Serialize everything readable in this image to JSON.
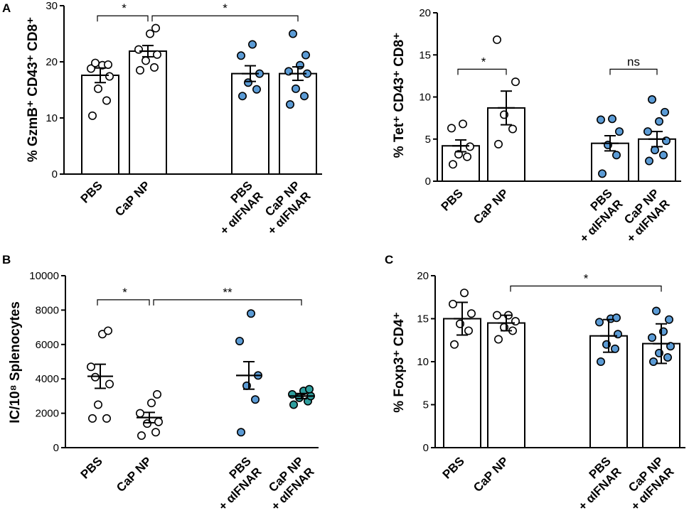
{
  "chart_data": [
    {
      "id": "A1",
      "panel_letter": "A",
      "type": "bar",
      "ylabel": "% GzmB⁺ CD43⁺ CD8⁺",
      "ylim": [
        0,
        30
      ],
      "yticks": [
        0,
        10,
        20,
        30
      ],
      "categories": [
        [
          "PBS"
        ],
        [
          "CaP NP"
        ],
        [
          "PBS",
          "+ αIFNAR"
        ],
        [
          "CaP NP",
          "+ αIFNAR"
        ]
      ],
      "series": [
        {
          "name": "PBS",
          "mean": 17.6,
          "sem": 1.3,
          "fill": "#ffffff",
          "points": [
            10.4,
            13.1,
            15.2,
            17.4,
            18.8,
            19.4,
            19.5,
            19.8
          ]
        },
        {
          "name": "CaP NP",
          "mean": 21.9,
          "sem": 1.0,
          "fill": "#ffffff",
          "points": [
            18.5,
            19.0,
            20.2,
            21.3,
            22.2,
            25.0,
            26.0
          ]
        },
        {
          "name": "PBS + αIFNAR",
          "mean": 17.9,
          "sem": 1.4,
          "fill": "#5b9bd5",
          "points": [
            13.9,
            15.1,
            16.3,
            17.9,
            21.1,
            23.1
          ]
        },
        {
          "name": "CaP NP + αIFNAR",
          "mean": 17.9,
          "sem": 1.2,
          "fill": "#5b9bd5",
          "points": [
            12.4,
            13.9,
            15.2,
            17.9,
            18.3,
            19.4,
            21.2,
            25.0
          ]
        }
      ],
      "significance": [
        {
          "from": 0,
          "to": 1,
          "label": "*",
          "y": 28.2
        },
        {
          "from": 1,
          "to": 3,
          "label": "*",
          "y": 28.2
        }
      ]
    },
    {
      "id": "A2",
      "panel_letter": "",
      "type": "bar",
      "ylabel": "% Tet⁺ CD43⁺ CD8⁺",
      "ylim": [
        0,
        20
      ],
      "yticks": [
        0,
        5,
        10,
        15,
        20
      ],
      "categories": [
        [
          "PBS"
        ],
        [
          "CaP NP"
        ],
        [
          "PBS",
          "+ αIFNAR"
        ],
        [
          "CaP NP",
          "+ αIFNAR"
        ]
      ],
      "series": [
        {
          "name": "PBS",
          "mean": 4.2,
          "sem": 0.7,
          "fill": "#ffffff",
          "points": [
            2.0,
            2.9,
            3.2,
            4.1,
            6.3,
            6.8
          ]
        },
        {
          "name": "CaP NP",
          "mean": 8.7,
          "sem": 2.0,
          "fill": "#ffffff",
          "points": [
            4.4,
            6.2,
            7.9,
            11.8,
            16.8
          ]
        },
        {
          "name": "PBS + αIFNAR",
          "mean": 4.5,
          "sem": 0.9,
          "fill": "#5b9bd5",
          "points": [
            0.9,
            3.1,
            4.3,
            5.9,
            7.3,
            7.4
          ]
        },
        {
          "name": "CaP NP + αIFNAR",
          "mean": 5.0,
          "sem": 0.9,
          "fill": "#5b9bd5",
          "points": [
            2.4,
            3.1,
            3.7,
            4.8,
            5.9,
            7.1,
            8.2,
            9.7
          ]
        }
      ],
      "significance": [
        {
          "from": 0,
          "to": 1,
          "label": "*",
          "y": 13.3
        },
        {
          "from": 2,
          "to": 3,
          "label": "ns",
          "y": 13.3
        }
      ]
    },
    {
      "id": "B",
      "panel_letter": "B",
      "type": "scatter",
      "ylabel": "IC/10⁸ Splenocytes",
      "ylim": [
        0,
        10000
      ],
      "yticks": [
        0,
        2000,
        4000,
        6000,
        8000,
        10000
      ],
      "categories": [
        [
          "PBS"
        ],
        [
          "CaP NP"
        ],
        [
          "PBS",
          "+ αIFNAR"
        ],
        [
          "CaP NP",
          "+ αIFNAR"
        ]
      ],
      "series": [
        {
          "name": "PBS",
          "mean": 4150,
          "sem": 700,
          "fill": "#ffffff",
          "points": [
            1700,
            1700,
            2500,
            3700,
            4700,
            6600,
            6800,
            4100
          ]
        },
        {
          "name": "CaP NP",
          "mean": 1750,
          "sem": 300,
          "fill": "#ffffff",
          "points": [
            700,
            900,
            1400,
            1500,
            2000,
            2600,
            3100
          ]
        },
        {
          "name": "PBS + αIFNAR",
          "mean": 4200,
          "sem": 800,
          "fill": "#5b9bd5",
          "points": [
            900,
            2800,
            3600,
            4200,
            6200,
            7800
          ]
        },
        {
          "name": "CaP NP + αIFNAR",
          "mean": 3000,
          "sem": 150,
          "fill": "#2e9e9e",
          "points": [
            2500,
            2700,
            2900,
            3000,
            3100,
            3300,
            3400
          ]
        }
      ],
      "significance": [
        {
          "from": 0,
          "to": 1,
          "label": "*",
          "y": 8600
        },
        {
          "from": 1,
          "to": 3,
          "label": "**",
          "y": 8600
        }
      ]
    },
    {
      "id": "C",
      "panel_letter": "C",
      "type": "bar",
      "ylabel": "%  Foxp3⁺ CD4⁺",
      "ylim": [
        0,
        20
      ],
      "yticks": [
        0,
        5,
        10,
        15,
        20
      ],
      "categories": [
        [
          "PBS"
        ],
        [
          "CaP NP"
        ],
        [
          "PBS",
          "+ αIFNAR"
        ],
        [
          "CaP NP",
          "+ αIFNAR"
        ]
      ],
      "series": [
        {
          "name": "PBS",
          "mean": 15.0,
          "sem": 1.9,
          "fill": "#ffffff",
          "points": [
            12.0,
            13.6,
            14.4,
            15.6,
            16.7,
            18.0
          ]
        },
        {
          "name": "CaP NP",
          "mean": 14.5,
          "sem": 0.9,
          "fill": "#ffffff",
          "points": [
            12.6,
            13.6,
            14.0,
            14.7,
            15.4,
            15.4
          ]
        },
        {
          "name": "PBS + αIFNAR",
          "mean": 13.0,
          "sem": 1.9,
          "fill": "#5b9bd5",
          "points": [
            10.0,
            11.5,
            12.0,
            13.2,
            14.6,
            15.0,
            15.1
          ]
        },
        {
          "name": "CaP NP + αIFNAR",
          "mean": 12.1,
          "sem": 2.3,
          "fill": "#5b9bd5",
          "points": [
            10.0,
            10.5,
            11.0,
            11.8,
            12.8,
            13.5,
            14.9,
            15.9
          ]
        }
      ],
      "significance": [
        {
          "from": 1,
          "to": 3,
          "label": "*",
          "y": 18.8
        }
      ]
    }
  ]
}
